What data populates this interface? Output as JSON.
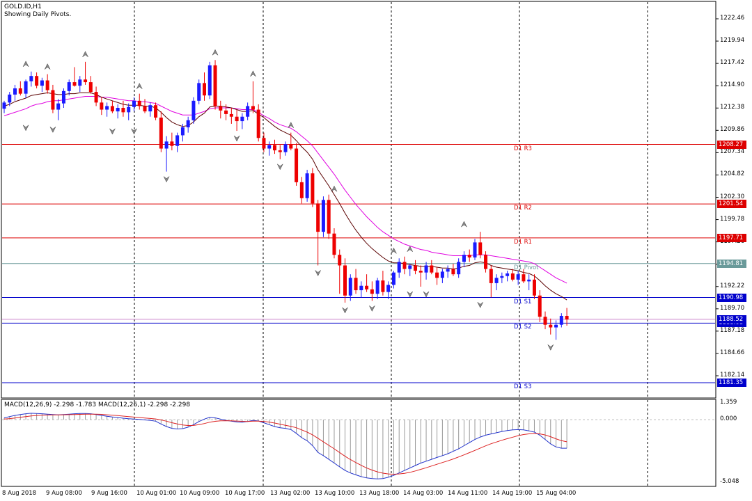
{
  "header": {
    "symbol": "GOLD.ID,H1",
    "indicator_note": "Showing Daily Pivots."
  },
  "macd_header": "MACD(12,26,9) -2.298 -1.783 MACD(12,26,1) -2.298 -2.298",
  "price_axis": [
    "1222.46",
    "1219.94",
    "1217.42",
    "1214.90",
    "1212.38",
    "1209.86",
    "1207.34",
    "1204.82",
    "1202.30",
    "1199.78",
    "1197.26",
    "1194.74",
    "1192.22",
    "1189.70",
    "1187.18",
    "1184.66",
    "1182.14"
  ],
  "macd_axis": [
    "1.359",
    "0.000",
    "-5.048"
  ],
  "time_axis": [
    "8 Aug 2018",
    "9 Aug 08:00",
    "9 Aug 16:00",
    "10 Aug 01:00",
    "10 Aug 09:00",
    "10 Aug 17:00",
    "13 Aug 02:00",
    "13 Aug 10:00",
    "13 Aug 18:00",
    "14 Aug 03:00",
    "14 Aug 11:00",
    "14 Aug 19:00",
    "15 Aug 04:00"
  ],
  "pivots": [
    {
      "label": "D1 R3",
      "price": 1208.27,
      "tag": "1208.27",
      "color": "#dd0000",
      "tag_bg": "#dd0000"
    },
    {
      "label": "D1 R2",
      "price": 1201.54,
      "tag": "1201.54",
      "color": "#dd0000",
      "tag_bg": "#dd0000"
    },
    {
      "label": "D1 R1",
      "price": 1197.71,
      "tag": "1197.71",
      "color": "#dd0000",
      "tag_bg": "#dd0000"
    },
    {
      "label": "D1 Pivot",
      "price": 1194.81,
      "tag": "1194.81",
      "color": "#6a9a9a",
      "tag_bg": "#6a9a9a"
    },
    {
      "label": "D1 S1",
      "price": 1190.98,
      "tag": "1190.98",
      "color": "#0000cc",
      "tag_bg": "#0000cc"
    },
    {
      "label": "D1 S2",
      "price": 1188.08,
      "tag": "1188.08",
      "color": "#0000cc",
      "tag_bg": "#0000cc"
    },
    {
      "label": "D1 S3",
      "price": 1181.35,
      "tag": "1181.35",
      "color": "#0000cc",
      "tag_bg": "#0000cc"
    }
  ],
  "current_price": {
    "price": 1188.52,
    "tag": "1188.52",
    "line_color": "#cc88cc",
    "tag_bg": "#0000cc"
  },
  "colors": {
    "bull": "#1a1aff",
    "bear": "#ee0000",
    "ema_fast": "#5a0000",
    "ema_slow": "#e000e0",
    "macd_line": "#2233cc",
    "signal_line": "#dd2222",
    "histogram": "#999999",
    "grid": "#000000"
  },
  "chart_data": {
    "type": "candlestick",
    "symbol": "GOLD.ID",
    "timeframe": "H1",
    "ylim": [
      1181.0,
      1223.5
    ],
    "candles": [
      [
        1212.3,
        1213.2,
        1211.8,
        1213.0
      ],
      [
        1213.0,
        1214.2,
        1212.6,
        1213.9
      ],
      [
        1213.9,
        1215.0,
        1213.2,
        1214.6
      ],
      [
        1214.6,
        1215.4,
        1213.8,
        1214.0
      ],
      [
        1214.0,
        1215.6,
        1213.5,
        1215.4
      ],
      [
        1215.4,
        1216.5,
        1214.8,
        1216.0
      ],
      [
        1216.0,
        1216.4,
        1214.6,
        1214.9
      ],
      [
        1214.9,
        1215.8,
        1214.2,
        1215.5
      ],
      [
        1215.5,
        1216.2,
        1214.0,
        1214.4
      ],
      [
        1214.4,
        1215.0,
        1211.8,
        1212.2
      ],
      [
        1212.2,
        1213.4,
        1211.0,
        1212.9
      ],
      [
        1212.9,
        1214.6,
        1212.4,
        1214.3
      ],
      [
        1214.3,
        1215.6,
        1213.8,
        1215.3
      ],
      [
        1215.3,
        1217.0,
        1214.8,
        1214.9
      ],
      [
        1214.9,
        1216.0,
        1214.2,
        1215.6
      ],
      [
        1215.6,
        1217.6,
        1215.0,
        1215.3
      ],
      [
        1215.3,
        1216.0,
        1214.0,
        1214.2
      ],
      [
        1214.2,
        1214.8,
        1212.6,
        1213.0
      ],
      [
        1213.0,
        1213.6,
        1211.6,
        1212.2
      ],
      [
        1212.2,
        1213.0,
        1211.4,
        1212.6
      ],
      [
        1212.6,
        1213.2,
        1211.8,
        1212.0
      ],
      [
        1212.0,
        1212.8,
        1211.2,
        1212.4
      ],
      [
        1212.4,
        1213.2,
        1211.4,
        1211.9
      ],
      [
        1211.9,
        1212.9,
        1211.0,
        1212.5
      ],
      [
        1212.5,
        1213.6,
        1212.0,
        1213.2
      ],
      [
        1213.2,
        1214.0,
        1212.2,
        1212.6
      ],
      [
        1212.6,
        1213.4,
        1211.8,
        1212.0
      ],
      [
        1212.0,
        1213.0,
        1211.4,
        1212.7
      ],
      [
        1212.7,
        1213.0,
        1211.0,
        1211.3
      ],
      [
        1211.3,
        1212.0,
        1207.4,
        1207.8
      ],
      [
        1207.8,
        1209.2,
        1205.2,
        1208.6
      ],
      [
        1208.6,
        1209.6,
        1207.6,
        1208.1
      ],
      [
        1208.1,
        1209.6,
        1207.4,
        1209.3
      ],
      [
        1209.3,
        1210.6,
        1208.6,
        1210.2
      ],
      [
        1210.2,
        1211.4,
        1209.6,
        1211.0
      ],
      [
        1211.0,
        1213.6,
        1210.6,
        1213.2
      ],
      [
        1213.2,
        1215.6,
        1212.8,
        1215.2
      ],
      [
        1215.2,
        1216.4,
        1213.2,
        1213.8
      ],
      [
        1213.8,
        1217.6,
        1213.4,
        1217.2
      ],
      [
        1217.2,
        1217.8,
        1212.2,
        1212.6
      ],
      [
        1212.6,
        1213.2,
        1211.2,
        1212.1
      ],
      [
        1212.1,
        1212.8,
        1211.0,
        1211.7
      ],
      [
        1211.7,
        1212.4,
        1210.6,
        1211.4
      ],
      [
        1211.4,
        1212.2,
        1209.8,
        1210.9
      ],
      [
        1210.9,
        1211.8,
        1210.0,
        1211.4
      ],
      [
        1211.4,
        1213.0,
        1211.0,
        1212.6
      ],
      [
        1212.6,
        1215.4,
        1211.8,
        1212.2
      ],
      [
        1212.2,
        1212.8,
        1208.6,
        1209.0
      ],
      [
        1209.0,
        1209.6,
        1207.4,
        1207.8
      ],
      [
        1207.8,
        1208.6,
        1207.0,
        1208.2
      ],
      [
        1208.2,
        1208.8,
        1207.2,
        1207.6
      ],
      [
        1207.6,
        1208.2,
        1206.6,
        1207.4
      ],
      [
        1207.4,
        1208.6,
        1207.0,
        1208.3
      ],
      [
        1208.3,
        1209.6,
        1207.6,
        1207.8
      ],
      [
        1207.8,
        1208.4,
        1203.6,
        1204.0
      ],
      [
        1204.0,
        1204.6,
        1201.6,
        1202.2
      ],
      [
        1202.2,
        1205.4,
        1201.8,
        1205.0
      ],
      [
        1205.0,
        1205.6,
        1201.2,
        1201.6
      ],
      [
        1201.6,
        1202.0,
        1194.6,
        1198.4
      ],
      [
        1198.4,
        1202.4,
        1197.8,
        1202.0
      ],
      [
        1202.0,
        1202.6,
        1197.6,
        1198.2
      ],
      [
        1198.2,
        1198.8,
        1195.4,
        1195.8
      ],
      [
        1195.8,
        1196.4,
        1191.4,
        1194.6
      ],
      [
        1194.6,
        1195.4,
        1190.4,
        1191.2
      ],
      [
        1191.2,
        1193.6,
        1190.6,
        1193.2
      ],
      [
        1193.2,
        1194.2,
        1191.4,
        1191.8
      ],
      [
        1191.8,
        1192.8,
        1191.0,
        1192.3
      ],
      [
        1192.3,
        1193.6,
        1191.6,
        1191.9
      ],
      [
        1191.9,
        1192.8,
        1190.6,
        1191.4
      ],
      [
        1191.4,
        1193.2,
        1190.8,
        1192.9
      ],
      [
        1192.9,
        1194.0,
        1191.2,
        1191.6
      ],
      [
        1191.6,
        1192.8,
        1190.8,
        1192.4
      ],
      [
        1192.4,
        1194.0,
        1192.0,
        1193.8
      ],
      [
        1193.8,
        1195.4,
        1193.2,
        1195.0
      ],
      [
        1195.0,
        1195.6,
        1193.6,
        1194.2
      ],
      [
        1194.2,
        1194.8,
        1193.4,
        1194.6
      ],
      [
        1194.6,
        1195.2,
        1193.6,
        1194.0
      ],
      [
        1194.0,
        1194.6,
        1192.2,
        1193.8
      ],
      [
        1193.8,
        1195.0,
        1193.0,
        1194.6
      ],
      [
        1194.6,
        1195.2,
        1193.6,
        1193.8
      ],
      [
        1193.8,
        1194.4,
        1192.4,
        1193.2
      ],
      [
        1193.2,
        1194.2,
        1192.6,
        1193.9
      ],
      [
        1193.9,
        1194.6,
        1193.2,
        1194.2
      ],
      [
        1194.2,
        1194.8,
        1193.4,
        1193.6
      ],
      [
        1193.6,
        1195.4,
        1193.2,
        1195.0
      ],
      [
        1195.0,
        1196.2,
        1194.4,
        1195.8
      ],
      [
        1195.8,
        1196.4,
        1195.0,
        1195.5
      ],
      [
        1195.5,
        1197.6,
        1195.2,
        1197.2
      ],
      [
        1197.2,
        1198.4,
        1195.4,
        1195.8
      ],
      [
        1195.8,
        1196.2,
        1193.8,
        1194.2
      ],
      [
        1194.2,
        1194.6,
        1191.0,
        1192.6
      ],
      [
        1192.6,
        1193.6,
        1191.8,
        1193.2
      ],
      [
        1193.2,
        1193.8,
        1192.6,
        1193.4
      ],
      [
        1193.4,
        1194.0,
        1192.8,
        1193.7
      ],
      [
        1193.7,
        1194.2,
        1192.8,
        1193.0
      ],
      [
        1193.0,
        1194.0,
        1192.4,
        1193.6
      ],
      [
        1193.6,
        1194.2,
        1192.6,
        1192.8
      ],
      [
        1192.8,
        1193.6,
        1191.8,
        1193.0
      ],
      [
        1193.0,
        1193.6,
        1190.8,
        1191.2
      ],
      [
        1191.2,
        1191.8,
        1188.2,
        1188.8
      ],
      [
        1188.8,
        1189.4,
        1187.4,
        1187.9
      ],
      [
        1187.9,
        1188.6,
        1186.8,
        1187.6
      ],
      [
        1187.6,
        1188.4,
        1186.2,
        1187.9
      ],
      [
        1187.9,
        1189.2,
        1187.6,
        1188.9
      ],
      [
        1188.9,
        1189.8,
        1187.8,
        1188.5
      ]
    ],
    "ema_fast": [
      1212.6,
      1212.8,
      1213.1,
      1213.3,
      1213.5,
      1213.8,
      1213.9,
      1214.0,
      1214.1,
      1214.0,
      1213.9,
      1213.9,
      1214.0,
      1214.0,
      1214.1,
      1214.1,
      1214.1,
      1213.9,
      1213.6,
      1213.4,
      1213.2,
      1213.0,
      1212.8,
      1212.7,
      1212.7,
      1212.7,
      1212.6,
      1212.6,
      1212.4,
      1211.9,
      1211.3,
      1210.8,
      1210.5,
      1210.3,
      1210.4,
      1210.8,
      1211.4,
      1211.8,
      1212.5,
      1212.6,
      1212.6,
      1212.5,
      1212.4,
      1212.2,
      1212.0,
      1212.0,
      1212.1,
      1211.7,
      1211.3,
      1210.8,
      1210.3,
      1209.9,
      1209.6,
      1209.3,
      1208.7,
      1208.0,
      1207.4,
      1206.6,
      1205.4,
      1204.5,
      1203.6,
      1202.6,
      1201.6,
      1200.5,
      1199.5,
      1198.6,
      1197.8,
      1197.1,
      1196.5,
      1196.0,
      1195.5,
      1195.1,
      1194.9,
      1194.9,
      1194.8,
      1194.7,
      1194.6,
      1194.5,
      1194.5,
      1194.5,
      1194.4,
      1194.3,
      1194.3,
      1194.2,
      1194.3,
      1194.5,
      1194.6,
      1194.9,
      1195.0,
      1194.9,
      1194.6,
      1194.4,
      1194.3,
      1194.2,
      1194.1,
      1194.0,
      1193.8,
      1193.7,
      1193.4,
      1192.9,
      1192.3,
      1191.8,
      1191.4,
      1191.1,
      1190.7
    ],
    "ema_slow": [
      1211.5,
      1211.7,
      1211.9,
      1212.1,
      1212.3,
      1212.6,
      1212.8,
      1212.9,
      1213.1,
      1213.2,
      1213.2,
      1213.3,
      1213.4,
      1213.5,
      1213.6,
      1213.7,
      1213.7,
      1213.7,
      1213.6,
      1213.6,
      1213.5,
      1213.4,
      1213.3,
      1213.2,
      1213.2,
      1213.1,
      1213.1,
      1213.0,
      1212.9,
      1212.6,
      1212.3,
      1212.0,
      1211.8,
      1211.6,
      1211.6,
      1211.6,
      1211.8,
      1212.0,
      1212.3,
      1212.4,
      1212.4,
      1212.4,
      1212.4,
      1212.3,
      1212.2,
      1212.2,
      1212.2,
      1211.9,
      1211.5,
      1211.2,
      1210.8,
      1210.5,
      1210.3,
      1210.1,
      1209.7,
      1209.2,
      1208.7,
      1208.1,
      1207.3,
      1206.5,
      1205.7,
      1204.9,
      1204.0,
      1203.1,
      1202.3,
      1201.5,
      1200.8,
      1200.1,
      1199.5,
      1198.9,
      1198.4,
      1198.0,
      1197.6,
      1197.3,
      1197.0,
      1196.8,
      1196.6,
      1196.4,
      1196.3,
      1196.1,
      1196.0,
      1195.9,
      1195.8,
      1195.7,
      1195.7,
      1195.7,
      1195.7,
      1195.8,
      1195.8,
      1195.8,
      1195.7,
      1195.6,
      1195.5,
      1195.4,
      1195.3,
      1195.2,
      1195.1,
      1195.0,
      1194.8,
      1194.4,
      1194.0,
      1193.6,
      1193.2,
      1192.9,
      1192.6
    ],
    "fractals_up": [
      [
        4,
        1216.5
      ],
      [
        8,
        1216.2
      ],
      [
        15,
        1217.6
      ],
      [
        25,
        1214.0
      ],
      [
        39,
        1217.8
      ],
      [
        46,
        1215.4
      ],
      [
        53,
        1209.6
      ],
      [
        61,
        1202.4
      ],
      [
        72,
        1195.4
      ],
      [
        75,
        1195.6
      ],
      [
        85,
        1198.4
      ]
    ],
    "fractals_down": [
      [
        4,
        1211.0
      ],
      [
        9,
        1210.8
      ],
      [
        20,
        1210.6
      ],
      [
        24,
        1210.6
      ],
      [
        30,
        1205.2
      ],
      [
        43,
        1209.8
      ],
      [
        51,
        1206.6
      ],
      [
        58,
        1194.6
      ],
      [
        63,
        1190.4
      ],
      [
        68,
        1190.6
      ],
      [
        75,
        1192.2
      ],
      [
        78,
        1192.2
      ],
      [
        88,
        1191.0
      ],
      [
        101,
        1186.2
      ]
    ],
    "macd_ylim": [
      -5.048,
      1.359
    ],
    "macd": [
      0.15,
      0.25,
      0.35,
      0.42,
      0.48,
      0.52,
      0.5,
      0.48,
      0.45,
      0.42,
      0.4,
      0.42,
      0.45,
      0.48,
      0.5,
      0.5,
      0.48,
      0.42,
      0.35,
      0.28,
      0.22,
      0.18,
      0.12,
      0.08,
      0.05,
      0.02,
      -0.02,
      -0.05,
      -0.12,
      -0.35,
      -0.55,
      -0.7,
      -0.75,
      -0.72,
      -0.6,
      -0.4,
      -0.15,
      0.05,
      0.2,
      0.15,
      0.05,
      -0.05,
      -0.12,
      -0.18,
      -0.2,
      -0.15,
      -0.05,
      -0.1,
      -0.25,
      -0.4,
      -0.55,
      -0.65,
      -0.7,
      -0.8,
      -1.1,
      -1.45,
      -1.7,
      -2.1,
      -2.65,
      -2.9,
      -3.2,
      -3.5,
      -3.8,
      -4.1,
      -4.3,
      -4.45,
      -4.6,
      -4.7,
      -4.75,
      -4.78,
      -4.75,
      -4.65,
      -4.5,
      -4.3,
      -4.1,
      -3.9,
      -3.7,
      -3.5,
      -3.35,
      -3.2,
      -3.05,
      -2.9,
      -2.75,
      -2.55,
      -2.35,
      -2.1,
      -1.85,
      -1.6,
      -1.4,
      -1.25,
      -1.15,
      -1.05,
      -0.95,
      -0.88,
      -0.82,
      -0.8,
      -0.82,
      -0.9,
      -1.0,
      -1.25,
      -1.6,
      -1.95,
      -2.2,
      -2.3,
      -2.298
    ],
    "signal": [
      0.05,
      0.09,
      0.14,
      0.2,
      0.25,
      0.3,
      0.34,
      0.37,
      0.38,
      0.39,
      0.39,
      0.4,
      0.41,
      0.42,
      0.43,
      0.45,
      0.45,
      0.45,
      0.43,
      0.4,
      0.37,
      0.33,
      0.29,
      0.25,
      0.21,
      0.18,
      0.14,
      0.1,
      0.06,
      -0.02,
      -0.12,
      -0.24,
      -0.34,
      -0.42,
      -0.47,
      -0.46,
      -0.4,
      -0.31,
      -0.2,
      -0.13,
      -0.09,
      -0.08,
      -0.09,
      -0.11,
      -0.13,
      -0.14,
      -0.12,
      -0.12,
      -0.14,
      -0.19,
      -0.27,
      -0.36,
      -0.45,
      -0.54,
      -0.65,
      -0.82,
      -1.0,
      -1.22,
      -1.5,
      -1.78,
      -2.07,
      -2.35,
      -2.65,
      -2.95,
      -3.22,
      -3.46,
      -3.69,
      -3.9,
      -4.07,
      -4.21,
      -4.32,
      -4.38,
      -4.4,
      -4.38,
      -4.33,
      -4.25,
      -4.14,
      -4.01,
      -3.88,
      -3.74,
      -3.6,
      -3.46,
      -3.32,
      -3.17,
      -3.01,
      -2.84,
      -2.66,
      -2.48,
      -2.29,
      -2.11,
      -1.94,
      -1.8,
      -1.66,
      -1.53,
      -1.41,
      -1.29,
      -1.2,
      -1.14,
      -1.11,
      -1.14,
      -1.23,
      -1.37,
      -1.54,
      -1.69,
      -1.783
    ]
  }
}
